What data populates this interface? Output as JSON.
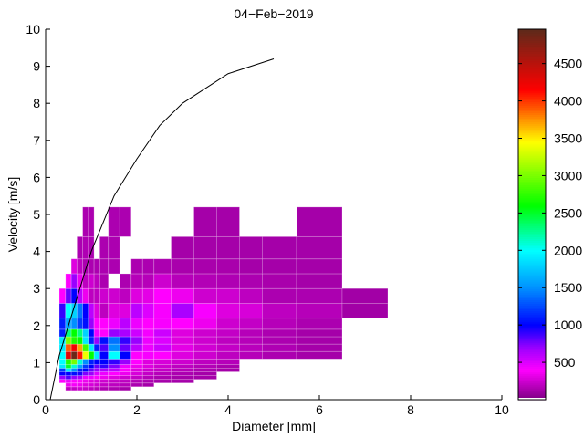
{
  "chart_data": {
    "type": "heatmap",
    "title": "04−Feb−2019",
    "xlabel": "Diameter [mm]",
    "ylabel": "Velocity [m/s]",
    "xlim": [
      0,
      10
    ],
    "ylim": [
      0,
      10
    ],
    "xticks": [
      0,
      2,
      4,
      6,
      8,
      10
    ],
    "yticks": [
      0,
      1,
      2,
      3,
      4,
      5,
      6,
      7,
      8,
      9,
      10
    ],
    "colorbar": {
      "range": [
        0,
        4960
      ],
      "ticks": [
        500,
        1000,
        1500,
        2000,
        2500,
        3000,
        3500,
        4000,
        4500
      ],
      "colormap": [
        [
          0,
          "#7a0080"
        ],
        [
          400,
          "#ff00ff"
        ],
        [
          700,
          "#9a00ff"
        ],
        [
          1000,
          "#0000ff"
        ],
        [
          1500,
          "#0090ff"
        ],
        [
          2000,
          "#00ffff"
        ],
        [
          2600,
          "#00ff00"
        ],
        [
          3450,
          "#ffff00"
        ],
        [
          3800,
          "#ff8000"
        ],
        [
          4150,
          "#ff0000"
        ],
        [
          4960,
          "#5e2a1a"
        ]
      ]
    },
    "diameter_edges": [
      0.3,
      0.437,
      0.562,
      0.687,
      0.812,
      0.937,
      1.062,
      1.187,
      1.375,
      1.625,
      1.875,
      2.125,
      2.375,
      2.75,
      3.25,
      3.75,
      4.25,
      4.75,
      5.5,
      6.5,
      7.5
    ],
    "velocity_edges": [
      0.25,
      0.35,
      0.45,
      0.55,
      0.65,
      0.75,
      0.85,
      0.95,
      1.1,
      1.3,
      1.5,
      1.7,
      1.9,
      2.2,
      2.6,
      3.0,
      3.4,
      3.8,
      4.4,
      5.2
    ],
    "counts": [
      [
        null,
        200,
        220,
        250,
        230,
        200,
        180,
        160,
        150,
        130,
        null,
        null,
        null,
        null,
        null,
        null,
        null,
        null,
        null,
        null
      ],
      [
        null,
        350,
        380,
        350,
        300,
        280,
        250,
        220,
        200,
        180,
        150,
        130,
        null,
        null,
        null,
        null,
        null,
        null,
        null,
        null
      ],
      [
        400,
        450,
        400,
        400,
        350,
        300,
        280,
        250,
        220,
        200,
        170,
        150,
        130,
        130,
        null,
        null,
        null,
        null,
        null,
        null
      ],
      [
        700,
        850,
        700,
        650,
        450,
        450,
        400,
        350,
        300,
        250,
        220,
        180,
        150,
        130,
        130,
        null,
        null,
        null,
        null,
        null
      ],
      [
        1000,
        1000,
        1050,
        950,
        750,
        700,
        500,
        450,
        400,
        350,
        280,
        220,
        180,
        150,
        130,
        null,
        null,
        null,
        null,
        null
      ],
      [
        1200,
        1900,
        1500,
        1100,
        1000,
        800,
        700,
        650,
        600,
        400,
        300,
        250,
        220,
        180,
        150,
        130,
        null,
        null,
        null,
        null
      ],
      [
        1900,
        2500,
        2100,
        1600,
        1200,
        1000,
        800,
        900,
        750,
        450,
        350,
        300,
        250,
        200,
        170,
        140,
        null,
        null,
        null,
        null
      ],
      [
        2000,
        2700,
        3000,
        2100,
        1500,
        1100,
        1000,
        1000,
        900,
        700,
        400,
        300,
        280,
        250,
        200,
        180,
        null,
        null,
        null,
        null
      ],
      [
        2000,
        4300,
        4900,
        4100,
        3400,
        2600,
        1900,
        1000,
        2000,
        1000,
        400,
        420,
        400,
        300,
        250,
        200,
        180,
        150,
        130,
        null
      ],
      [
        1900,
        3900,
        4200,
        3700,
        2800,
        1900,
        1100,
        850,
        1500,
        800,
        600,
        450,
        550,
        320,
        260,
        220,
        190,
        160,
        130,
        null
      ],
      [
        1900,
        3000,
        2700,
        2600,
        1900,
        1100,
        700,
        1050,
        1400,
        900,
        700,
        450,
        500,
        300,
        250,
        200,
        180,
        150,
        130,
        null
      ],
      [
        1100,
        2300,
        2600,
        2300,
        1800,
        1000,
        450,
        400,
        700,
        650,
        550,
        430,
        550,
        300,
        250,
        220,
        180,
        150,
        130,
        null
      ],
      [
        1100,
        1600,
        1500,
        1200,
        1050,
        700,
        400,
        400,
        450,
        600,
        450,
        400,
        420,
        400,
        350,
        250,
        220,
        180,
        150,
        null
      ],
      [
        900,
        2000,
        1800,
        1400,
        1000,
        600,
        300,
        200,
        300,
        300,
        600,
        500,
        420,
        650,
        420,
        300,
        280,
        200,
        180,
        120
      ],
      [
        400,
        800,
        1000,
        600,
        350,
        200,
        200,
        250,
        250,
        200,
        300,
        320,
        400,
        350,
        250,
        250,
        200,
        150,
        150,
        120
      ],
      [
        null,
        400,
        700,
        350,
        200,
        250,
        200,
        150,
        null,
        150,
        180,
        180,
        250,
        180,
        170,
        160,
        150,
        140,
        130,
        null
      ],
      [
        null,
        null,
        300,
        200,
        150,
        150,
        150,
        150,
        150,
        null,
        150,
        150,
        150,
        140,
        140,
        140,
        130,
        130,
        130,
        null
      ],
      [
        null,
        null,
        null,
        150,
        160,
        150,
        null,
        150,
        150,
        null,
        null,
        null,
        null,
        130,
        130,
        130,
        130,
        130,
        130,
        null
      ],
      [
        null,
        null,
        null,
        null,
        150,
        150,
        null,
        null,
        150,
        150,
        null,
        null,
        null,
        null,
        130,
        130,
        null,
        null,
        130,
        null
      ]
    ],
    "fall_velocity_curve": {
      "x": [
        0.1,
        0.3,
        0.5,
        0.75,
        1.0,
        1.5,
        2.0,
        2.5,
        3.0,
        3.5,
        4.0,
        5.0
      ],
      "y": [
        0,
        1.2,
        2.0,
        3.0,
        4.0,
        5.5,
        6.5,
        7.4,
        8.0,
        8.4,
        8.8,
        9.2
      ],
      "color": "#000000"
    }
  }
}
